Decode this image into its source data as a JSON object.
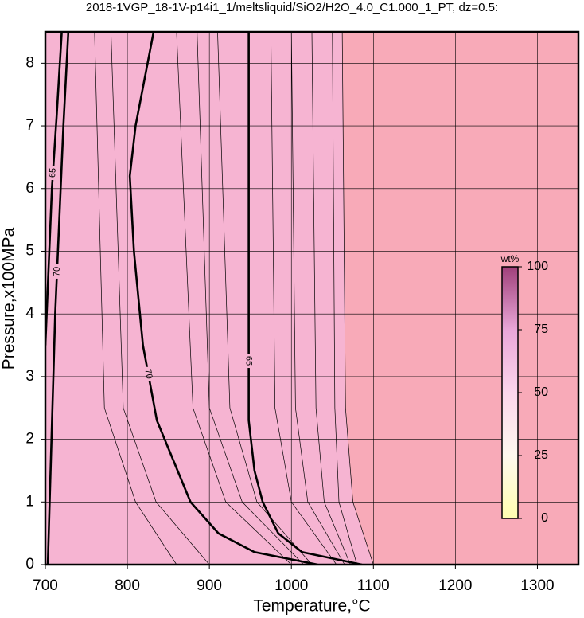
{
  "chart_data": {
    "type": "contour",
    "title": "2018-1VGP_18-1V-p14i1_1/meltsliquid/SiO2/H2O_4.0_C1.000_1_PT, dz=0.5:",
    "xlabel": "Temperature,°C",
    "ylabel": "Pressure,x100MPa",
    "xlim": [
      700,
      1350
    ],
    "ylim": [
      0,
      8.5
    ],
    "xticks": [
      700,
      800,
      900,
      1000,
      1100,
      1200,
      1300
    ],
    "yticks": [
      0,
      1,
      2,
      3,
      4,
      5,
      6,
      7,
      8
    ],
    "grid": true,
    "fill_colors": [
      "#f6b4d2",
      "#f8aab8"
    ],
    "contours": [
      {
        "x": [
          703,
          712,
          722,
          728
        ],
        "y": [
          0,
          4,
          7,
          8.5
        ],
        "bold": true,
        "level": 70
      },
      {
        "x": [
          700,
          708,
          714,
          720
        ],
        "y": [
          3.5,
          6,
          7.2,
          8.5
        ],
        "bold": true,
        "level": 65
      },
      {
        "x": [
          760,
          772,
          810,
          860
        ],
        "y": [
          8.5,
          2.5,
          1,
          0
        ],
        "bold": false
      },
      {
        "x": [
          780,
          795,
          835,
          900
        ],
        "y": [
          8.5,
          2.5,
          1,
          0
        ],
        "bold": false
      },
      {
        "x": [
          832,
          810,
          803,
          808,
          819,
          836,
          877,
          911,
          955,
          1032
        ],
        "y": [
          8.5,
          7,
          6.2,
          5,
          3.5,
          2.3,
          1,
          0.5,
          0.2,
          0
        ],
        "bold": true,
        "level": 70
      },
      {
        "x": [
          860,
          880,
          920,
          1000
        ],
        "y": [
          8.5,
          2.5,
          1,
          0
        ],
        "bold": false
      },
      {
        "x": [
          885,
          900,
          940,
          1015
        ],
        "y": [
          8.5,
          2.5,
          1,
          0
        ],
        "bold": false
      },
      {
        "x": [
          910,
          925,
          958,
          1025
        ],
        "y": [
          8.5,
          2.5,
          1,
          0
        ],
        "bold": false
      },
      {
        "x": [
          948,
          948,
          948,
          955,
          965,
          984,
          1013,
          1086
        ],
        "y": [
          8.5,
          5,
          2.3,
          1.5,
          1,
          0.5,
          0.2,
          0
        ],
        "bold": true,
        "level": 65
      },
      {
        "x": [
          975,
          980,
          1000,
          1055
        ],
        "y": [
          8.5,
          2.5,
          1,
          0
        ],
        "bold": false
      },
      {
        "x": [
          1000,
          1005,
          1020,
          1065
        ],
        "y": [
          8.5,
          2.5,
          1,
          0
        ],
        "bold": false
      },
      {
        "x": [
          1025,
          1030,
          1040,
          1072
        ],
        "y": [
          8.5,
          2.5,
          1,
          0
        ],
        "bold": false
      },
      {
        "x": [
          1050,
          1053,
          1058,
          1080
        ],
        "y": [
          8.5,
          2.5,
          1,
          0
        ],
        "bold": false
      },
      {
        "x": [
          1062,
          1066,
          1075,
          1100
        ],
        "y": [
          8.5,
          2.5,
          1,
          0
        ],
        "bold": false
      }
    ],
    "colorbar": {
      "label": "wt%",
      "lim": [
        0,
        100
      ],
      "ticks": [
        0,
        25,
        50,
        75,
        100
      ],
      "colors": [
        "#ffffb0",
        "#fff8ee",
        "#fbd6ec",
        "#e9a6d8",
        "#a0407a"
      ]
    }
  }
}
